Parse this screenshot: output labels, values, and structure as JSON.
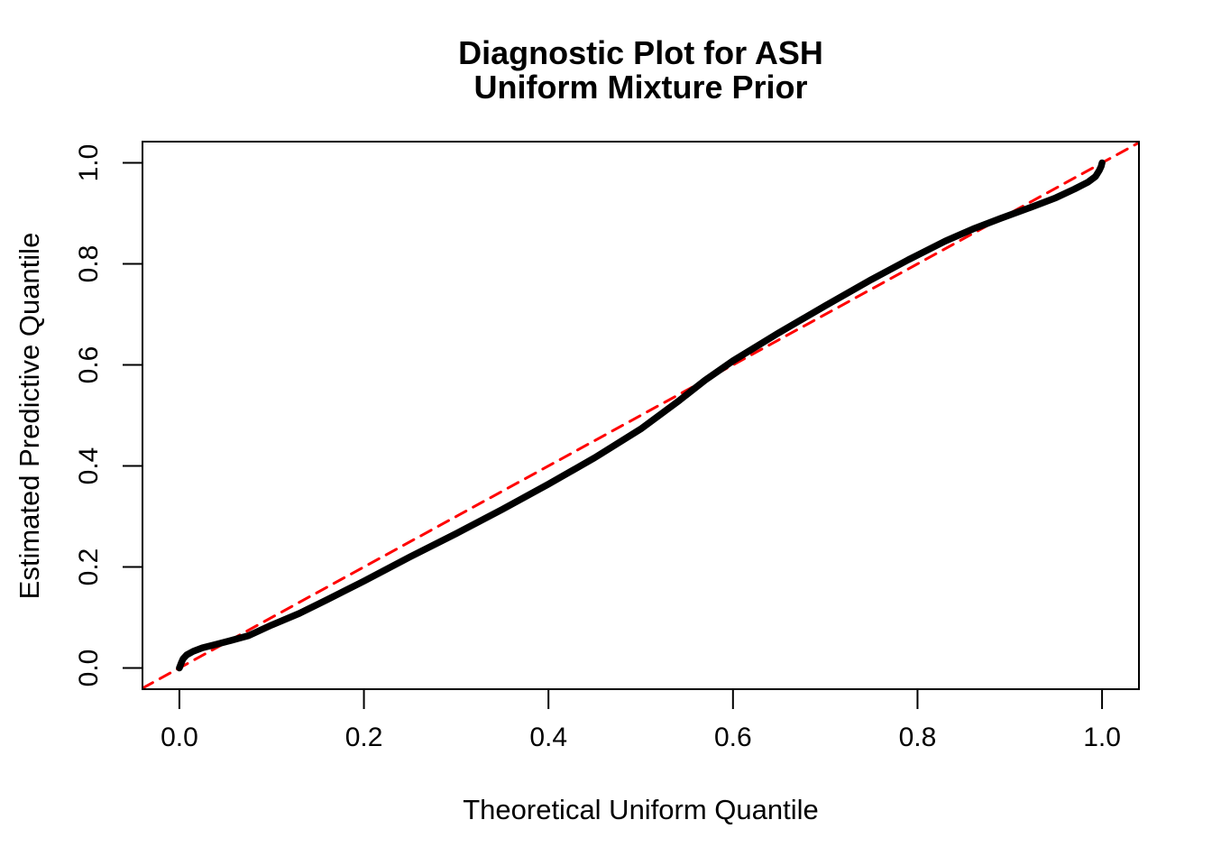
{
  "chart_data": {
    "type": "line",
    "title_line1": "Diagnostic Plot for ASH",
    "title_line2": "Uniform Mixture Prior",
    "xlabel": "Theoretical Uniform Quantile",
    "ylabel": "Estimated Predictive Quantile",
    "xlim": [
      -0.04,
      1.04
    ],
    "ylim": [
      -0.042,
      1.042
    ],
    "grid": false,
    "legend": false,
    "x_ticks": {
      "values": [
        0.0,
        0.2,
        0.4,
        0.6,
        0.8,
        1.0
      ],
      "labels": [
        "0.0",
        "0.2",
        "0.4",
        "0.6",
        "0.8",
        "1.0"
      ]
    },
    "y_ticks": {
      "values": [
        0.0,
        0.2,
        0.4,
        0.6,
        0.8,
        1.0
      ],
      "labels": [
        "0.0",
        "0.2",
        "0.4",
        "0.6",
        "0.8",
        "1.0"
      ]
    },
    "series": [
      {
        "name": "estimated-predictive-quantile-curve",
        "color": "#000000",
        "line_width": 7.5,
        "dashed": false,
        "x": [
          0.0,
          0.002,
          0.004,
          0.008,
          0.015,
          0.025,
          0.04,
          0.055,
          0.075,
          0.1,
          0.13,
          0.16,
          0.2,
          0.25,
          0.3,
          0.35,
          0.4,
          0.45,
          0.5,
          0.54,
          0.57,
          0.6,
          0.65,
          0.7,
          0.75,
          0.79,
          0.83,
          0.86,
          0.89,
          0.92,
          0.95,
          0.97,
          0.985,
          0.993,
          0.997,
          0.999,
          1.0
        ],
        "y": [
          0.0,
          0.01,
          0.018,
          0.026,
          0.033,
          0.04,
          0.047,
          0.054,
          0.064,
          0.085,
          0.108,
          0.135,
          0.172,
          0.22,
          0.266,
          0.314,
          0.364,
          0.416,
          0.473,
          0.527,
          0.57,
          0.608,
          0.664,
          0.717,
          0.769,
          0.808,
          0.845,
          0.869,
          0.89,
          0.91,
          0.931,
          0.948,
          0.962,
          0.973,
          0.985,
          0.993,
          1.0
        ]
      },
      {
        "name": "diagonal-reference-line",
        "color": "#FF0000",
        "line_width": 3,
        "dashed": true,
        "x": [
          -0.04,
          1.04
        ],
        "y": [
          -0.04,
          1.04
        ]
      }
    ]
  }
}
